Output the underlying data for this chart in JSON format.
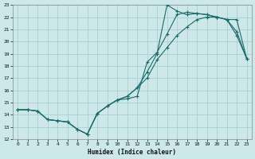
{
  "xlabel": "Humidex (Indice chaleur)",
  "bg_color": "#cce8e8",
  "grid_color": "#aacfcf",
  "line_color": "#1a6b6b",
  "xlim": [
    -0.5,
    23.5
  ],
  "ylim": [
    12,
    23
  ],
  "xticks": [
    0,
    1,
    2,
    3,
    4,
    5,
    6,
    7,
    8,
    9,
    10,
    11,
    12,
    13,
    14,
    15,
    16,
    17,
    18,
    19,
    20,
    21,
    22,
    23
  ],
  "yticks": [
    12,
    13,
    14,
    15,
    16,
    17,
    18,
    19,
    20,
    21,
    22,
    23
  ],
  "line1_x": [
    0,
    1,
    2,
    3,
    4,
    5,
    6,
    7,
    8,
    9,
    10,
    11,
    12,
    13,
    14,
    15,
    16,
    17,
    18,
    19,
    20,
    21,
    22,
    23
  ],
  "line1_y": [
    14.4,
    14.4,
    14.3,
    13.6,
    13.5,
    13.4,
    12.8,
    12.4,
    14.1,
    14.7,
    15.2,
    15.3,
    15.5,
    18.3,
    19.1,
    20.6,
    22.2,
    22.4,
    22.3,
    22.2,
    22.0,
    21.8,
    21.8,
    18.6
  ],
  "line2_x": [
    0,
    1,
    2,
    3,
    4,
    5,
    6,
    7,
    8,
    9,
    10,
    11,
    12,
    13,
    14,
    15,
    16,
    17,
    18,
    19,
    20,
    21,
    22,
    23
  ],
  "line2_y": [
    14.4,
    14.4,
    14.3,
    13.6,
    13.5,
    13.4,
    12.8,
    12.4,
    14.1,
    14.7,
    15.2,
    15.5,
    16.2,
    17.5,
    19.0,
    23.0,
    22.5,
    22.2,
    22.3,
    22.2,
    22.0,
    21.8,
    20.5,
    18.6
  ],
  "line3_x": [
    0,
    1,
    2,
    3,
    4,
    5,
    6,
    7,
    8,
    9,
    10,
    11,
    12,
    13,
    14,
    15,
    16,
    17,
    18,
    19,
    20,
    21,
    22,
    23
  ],
  "line3_y": [
    14.4,
    14.4,
    14.3,
    13.6,
    13.5,
    13.4,
    12.8,
    12.4,
    14.1,
    14.7,
    15.2,
    15.5,
    16.2,
    17.0,
    18.5,
    19.5,
    20.5,
    21.2,
    21.8,
    22.0,
    22.0,
    21.8,
    20.8,
    18.6
  ]
}
